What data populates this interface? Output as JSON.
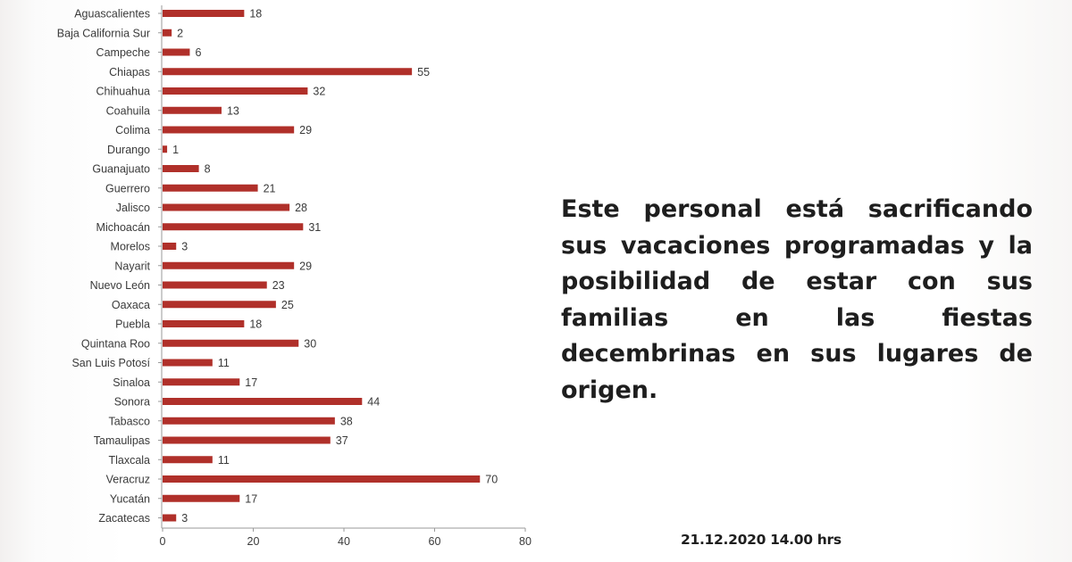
{
  "chart_data": {
    "type": "bar",
    "orientation": "horizontal",
    "categories": [
      "Aguascalientes",
      "Baja California Sur",
      "Campeche",
      "Chiapas",
      "Chihuahua",
      "Coahuila",
      "Colima",
      "Durango",
      "Guanajuato",
      "Guerrero",
      "Jalisco",
      "Michoacán",
      "Morelos",
      "Nayarit",
      "Nuevo León",
      "Oaxaca",
      "Puebla",
      "Quintana Roo",
      "San Luis Potosí",
      "Sinaloa",
      "Sonora",
      "Tabasco",
      "Tamaulipas",
      "Tlaxcala",
      "Veracruz",
      "Yucatán",
      "Zacatecas"
    ],
    "values": [
      18,
      2,
      6,
      55,
      32,
      13,
      29,
      1,
      8,
      21,
      28,
      31,
      3,
      29,
      23,
      25,
      18,
      30,
      11,
      17,
      44,
      38,
      37,
      11,
      70,
      17,
      3
    ],
    "xlim": [
      0,
      80
    ],
    "xticks": [
      0,
      20,
      40,
      60,
      80
    ],
    "bar_color": "#b0302a",
    "grid": false,
    "data_labels": true
  },
  "message": "Este personal está sacrificando sus vacaciones programadas y la posibilidad de estar con sus familias en las fiestas decembrinas en sus lugares de origen.",
  "timestamp": "21.12.2020 14.00 hrs"
}
